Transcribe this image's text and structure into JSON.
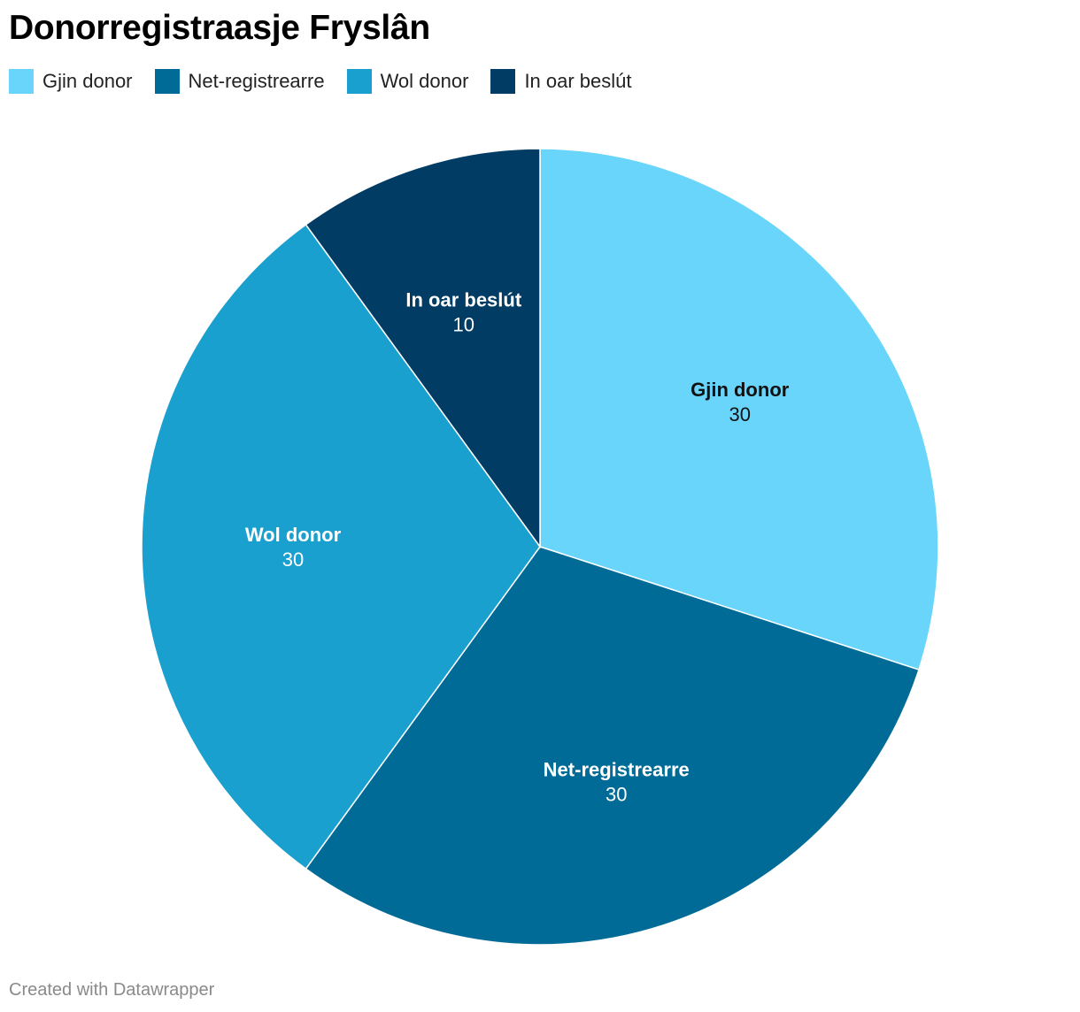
{
  "title": "Donorregistraasje Fryslân",
  "footer": "Created with Datawrapper",
  "chart_data": {
    "type": "pie",
    "title": "Donorregistraasje Fryslân",
    "categories": [
      "Gjin donor",
      "Net-registrearre",
      "Wol donor",
      "In oar beslút"
    ],
    "values": [
      30,
      30,
      30,
      10
    ],
    "colors": [
      "#69d5fb",
      "#006b96",
      "#1aa0ce",
      "#003c63"
    ],
    "label_colors": [
      "#111111",
      "#ffffff",
      "#ffffff",
      "#ffffff"
    ],
    "start": "12 o'clock",
    "direction": "clockwise",
    "legend_position": "top-left"
  }
}
